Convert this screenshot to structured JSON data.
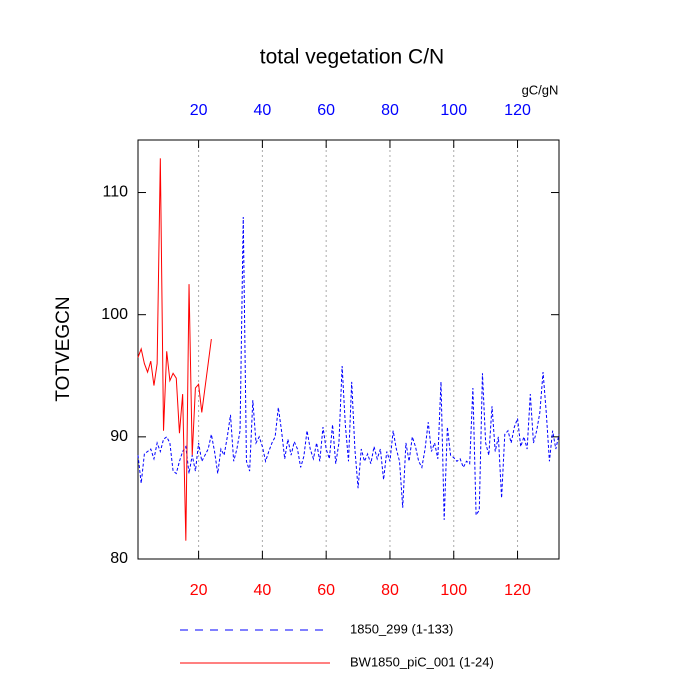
{
  "chart_data": {
    "type": "line",
    "title": "total vegetation C/N",
    "y_label": "TOTVEGCN",
    "x2_label": "gC/gN",
    "xlim": [
      1,
      133
    ],
    "ylim": [
      80,
      114.3
    ],
    "xticks": [
      20,
      40,
      60,
      80,
      100,
      120
    ],
    "xticks_color": "#ff0000",
    "x2ticks": [
      20,
      40,
      60,
      80,
      100,
      120
    ],
    "x2ticks_color": "#0000ff",
    "yticks": [
      80,
      90,
      100,
      110
    ],
    "grid": true,
    "legend": "bottom",
    "series": [
      {
        "name": "1850_299 (1-133)",
        "color": "#0000ff",
        "dashed": true,
        "x": [
          1,
          2,
          3,
          4,
          5,
          6,
          7,
          8,
          9,
          10,
          11,
          12,
          13,
          14,
          15,
          16,
          17,
          18,
          19,
          20,
          21,
          22,
          23,
          24,
          25,
          26,
          27,
          28,
          29,
          30,
          31,
          32,
          33,
          34,
          35,
          36,
          37,
          38,
          39,
          40,
          41,
          42,
          43,
          44,
          45,
          46,
          47,
          48,
          49,
          50,
          51,
          52,
          53,
          54,
          55,
          56,
          57,
          58,
          59,
          60,
          61,
          62,
          63,
          64,
          65,
          66,
          67,
          68,
          69,
          70,
          71,
          72,
          73,
          74,
          75,
          76,
          77,
          78,
          79,
          80,
          81,
          82,
          83,
          84,
          85,
          86,
          87,
          88,
          89,
          90,
          91,
          92,
          93,
          94,
          95,
          96,
          97,
          98,
          99,
          100,
          101,
          102,
          103,
          104,
          105,
          106,
          107,
          108,
          109,
          110,
          111,
          112,
          113,
          114,
          115,
          116,
          117,
          118,
          119,
          120,
          121,
          122,
          123,
          124,
          125,
          126,
          127,
          128,
          129,
          130,
          131,
          132,
          133
        ],
        "values": [
          88.5,
          86.2,
          88.6,
          88.8,
          89.0,
          88.2,
          89.5,
          88.8,
          89.8,
          90.0,
          89.5,
          87.2,
          87.0,
          88.0,
          88.8,
          89.2,
          87.0,
          88.5,
          87.2,
          89.5,
          88.0,
          88.5,
          89.0,
          90.2,
          88.8,
          87.0,
          89.0,
          88.5,
          90.0,
          91.8,
          88.0,
          89.0,
          90.5,
          108.0,
          88.0,
          87.2,
          93.0,
          89.5,
          90.0,
          89.2,
          88.0,
          88.8,
          89.5,
          90.0,
          92.4,
          90.5,
          88.2,
          89.8,
          88.5,
          89.6,
          89.0,
          87.5,
          88.4,
          90.5,
          89.0,
          88.2,
          89.5,
          88.0,
          90.8,
          89.0,
          88.2,
          91.0,
          87.8,
          89.5,
          95.8,
          91.0,
          88.0,
          94.5,
          89.0,
          85.8,
          89.0,
          88.0,
          88.6,
          87.8,
          89.2,
          88.2,
          89.0,
          86.5,
          88.8,
          88.0,
          90.5,
          89.0,
          88.0,
          84.2,
          89.5,
          88.0,
          90.0,
          89.2,
          88.0,
          87.5,
          89.0,
          91.2,
          88.8,
          89.5,
          88.2,
          94.5,
          83.2,
          90.8,
          88.5,
          88.3,
          88.0,
          88.2,
          87.5,
          88.0,
          87.8,
          94.0,
          83.6,
          84.0,
          95.2,
          89.5,
          88.5,
          92.5,
          88.8,
          90.0,
          85.0,
          90.2,
          90.5,
          89.5,
          90.8,
          91.5,
          89.2,
          90.0,
          89.0,
          93.5,
          89.5,
          90.5,
          92.0,
          95.3,
          92.0,
          88.0,
          90.5,
          89.0,
          90.2
        ]
      },
      {
        "name": "BW1850_piC_001 (1-24)",
        "color": "#ff0000",
        "dashed": false,
        "x": [
          1,
          2,
          3,
          4,
          5,
          6,
          7,
          8,
          9,
          10,
          11,
          12,
          13,
          14,
          15,
          16,
          17,
          18,
          19,
          20,
          21,
          22,
          23,
          24
        ],
        "values": [
          96.5,
          97.2,
          96.0,
          95.3,
          96.2,
          94.2,
          96.0,
          112.8,
          90.5,
          97.0,
          94.6,
          95.2,
          94.8,
          90.3,
          93.5,
          81.5,
          102.5,
          88.5,
          94.0,
          94.3,
          92.0,
          94.0,
          96.0,
          98.0
        ]
      }
    ]
  }
}
